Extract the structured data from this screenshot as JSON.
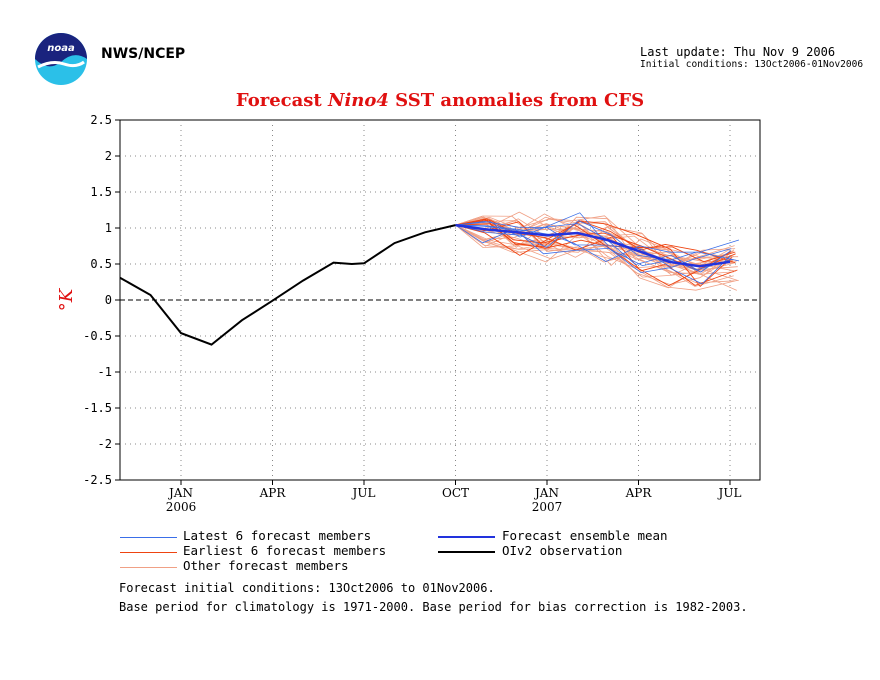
{
  "header": {
    "agency": "NWS/NCEP",
    "last_update": "Last update: Thu Nov  9 2006",
    "initial_conditions": "Initial conditions: 13Oct2006-01Nov2006"
  },
  "logo": {
    "icon": "noaa-logo",
    "text": "noaa"
  },
  "colors": {
    "title": "#e01010",
    "latest": "#3a6ee8",
    "earliest": "#ee4411",
    "other": "#f0a085",
    "mean": "#2233dd",
    "obs": "#000000"
  },
  "chart_data": {
    "type": "line",
    "title": [
      "Forecast ",
      "Nino4",
      " SST anomalies from CFS"
    ],
    "ylabel": "°K",
    "ylim": [
      -2.5,
      2.5
    ],
    "yticks": [
      "2.5",
      "2",
      "1.5",
      "1",
      "0.5",
      "0",
      "-0.5",
      "-1",
      "-1.5",
      "-2",
      "-2.5"
    ],
    "xticks": [
      {
        "label": "JAN",
        "year": "2006"
      },
      {
        "label": "APR",
        "year": ""
      },
      {
        "label": "JUL",
        "year": ""
      },
      {
        "label": "OCT",
        "year": ""
      },
      {
        "label": "JAN",
        "year": "2007"
      },
      {
        "label": "APR",
        "year": ""
      },
      {
        "label": "JUL",
        "year": ""
      }
    ],
    "grid": true,
    "zero_line": "dashed",
    "x_units": "month index from Dec 2005 (Jan 2006 = 2, Oct 2006 = 11, Jul 2007 = 20)",
    "observation": {
      "name": "OIv2 observation",
      "x": [
        0,
        1,
        2,
        3,
        4,
        5,
        6,
        7,
        7.6,
        8,
        9,
        10,
        11
      ],
      "y": [
        0.31,
        0.07,
        -0.46,
        -0.62,
        -0.28,
        -0.01,
        0.27,
        0.52,
        0.5,
        0.51,
        0.79,
        0.94,
        1.04
      ]
    },
    "ensemble_mean": {
      "name": "Forecast ensemble mean",
      "x": [
        11,
        12,
        13,
        14,
        15,
        16,
        17,
        18,
        19,
        20
      ],
      "y": [
        1.04,
        0.98,
        0.94,
        0.9,
        0.93,
        0.83,
        0.68,
        0.53,
        0.47,
        0.53
      ]
    },
    "member_groups": [
      {
        "name": "Latest 6 forecast members",
        "count": 6
      },
      {
        "name": "Earliest 6 forecast members",
        "count": 6
      },
      {
        "name": "Other forecast members",
        "count": 28
      }
    ]
  },
  "legend": {
    "latest": "Latest 6 forecast members",
    "earliest": "Earliest 6 forecast members",
    "other": "Other forecast members",
    "mean": "Forecast ensemble mean",
    "obs": "OIv2 observation"
  },
  "footnotes": {
    "line1": "Forecast initial conditions: 13Oct2006 to 01Nov2006.",
    "line2": "Base period for climatology is 1971-2000. Base period for bias correction is 1982-2003."
  }
}
